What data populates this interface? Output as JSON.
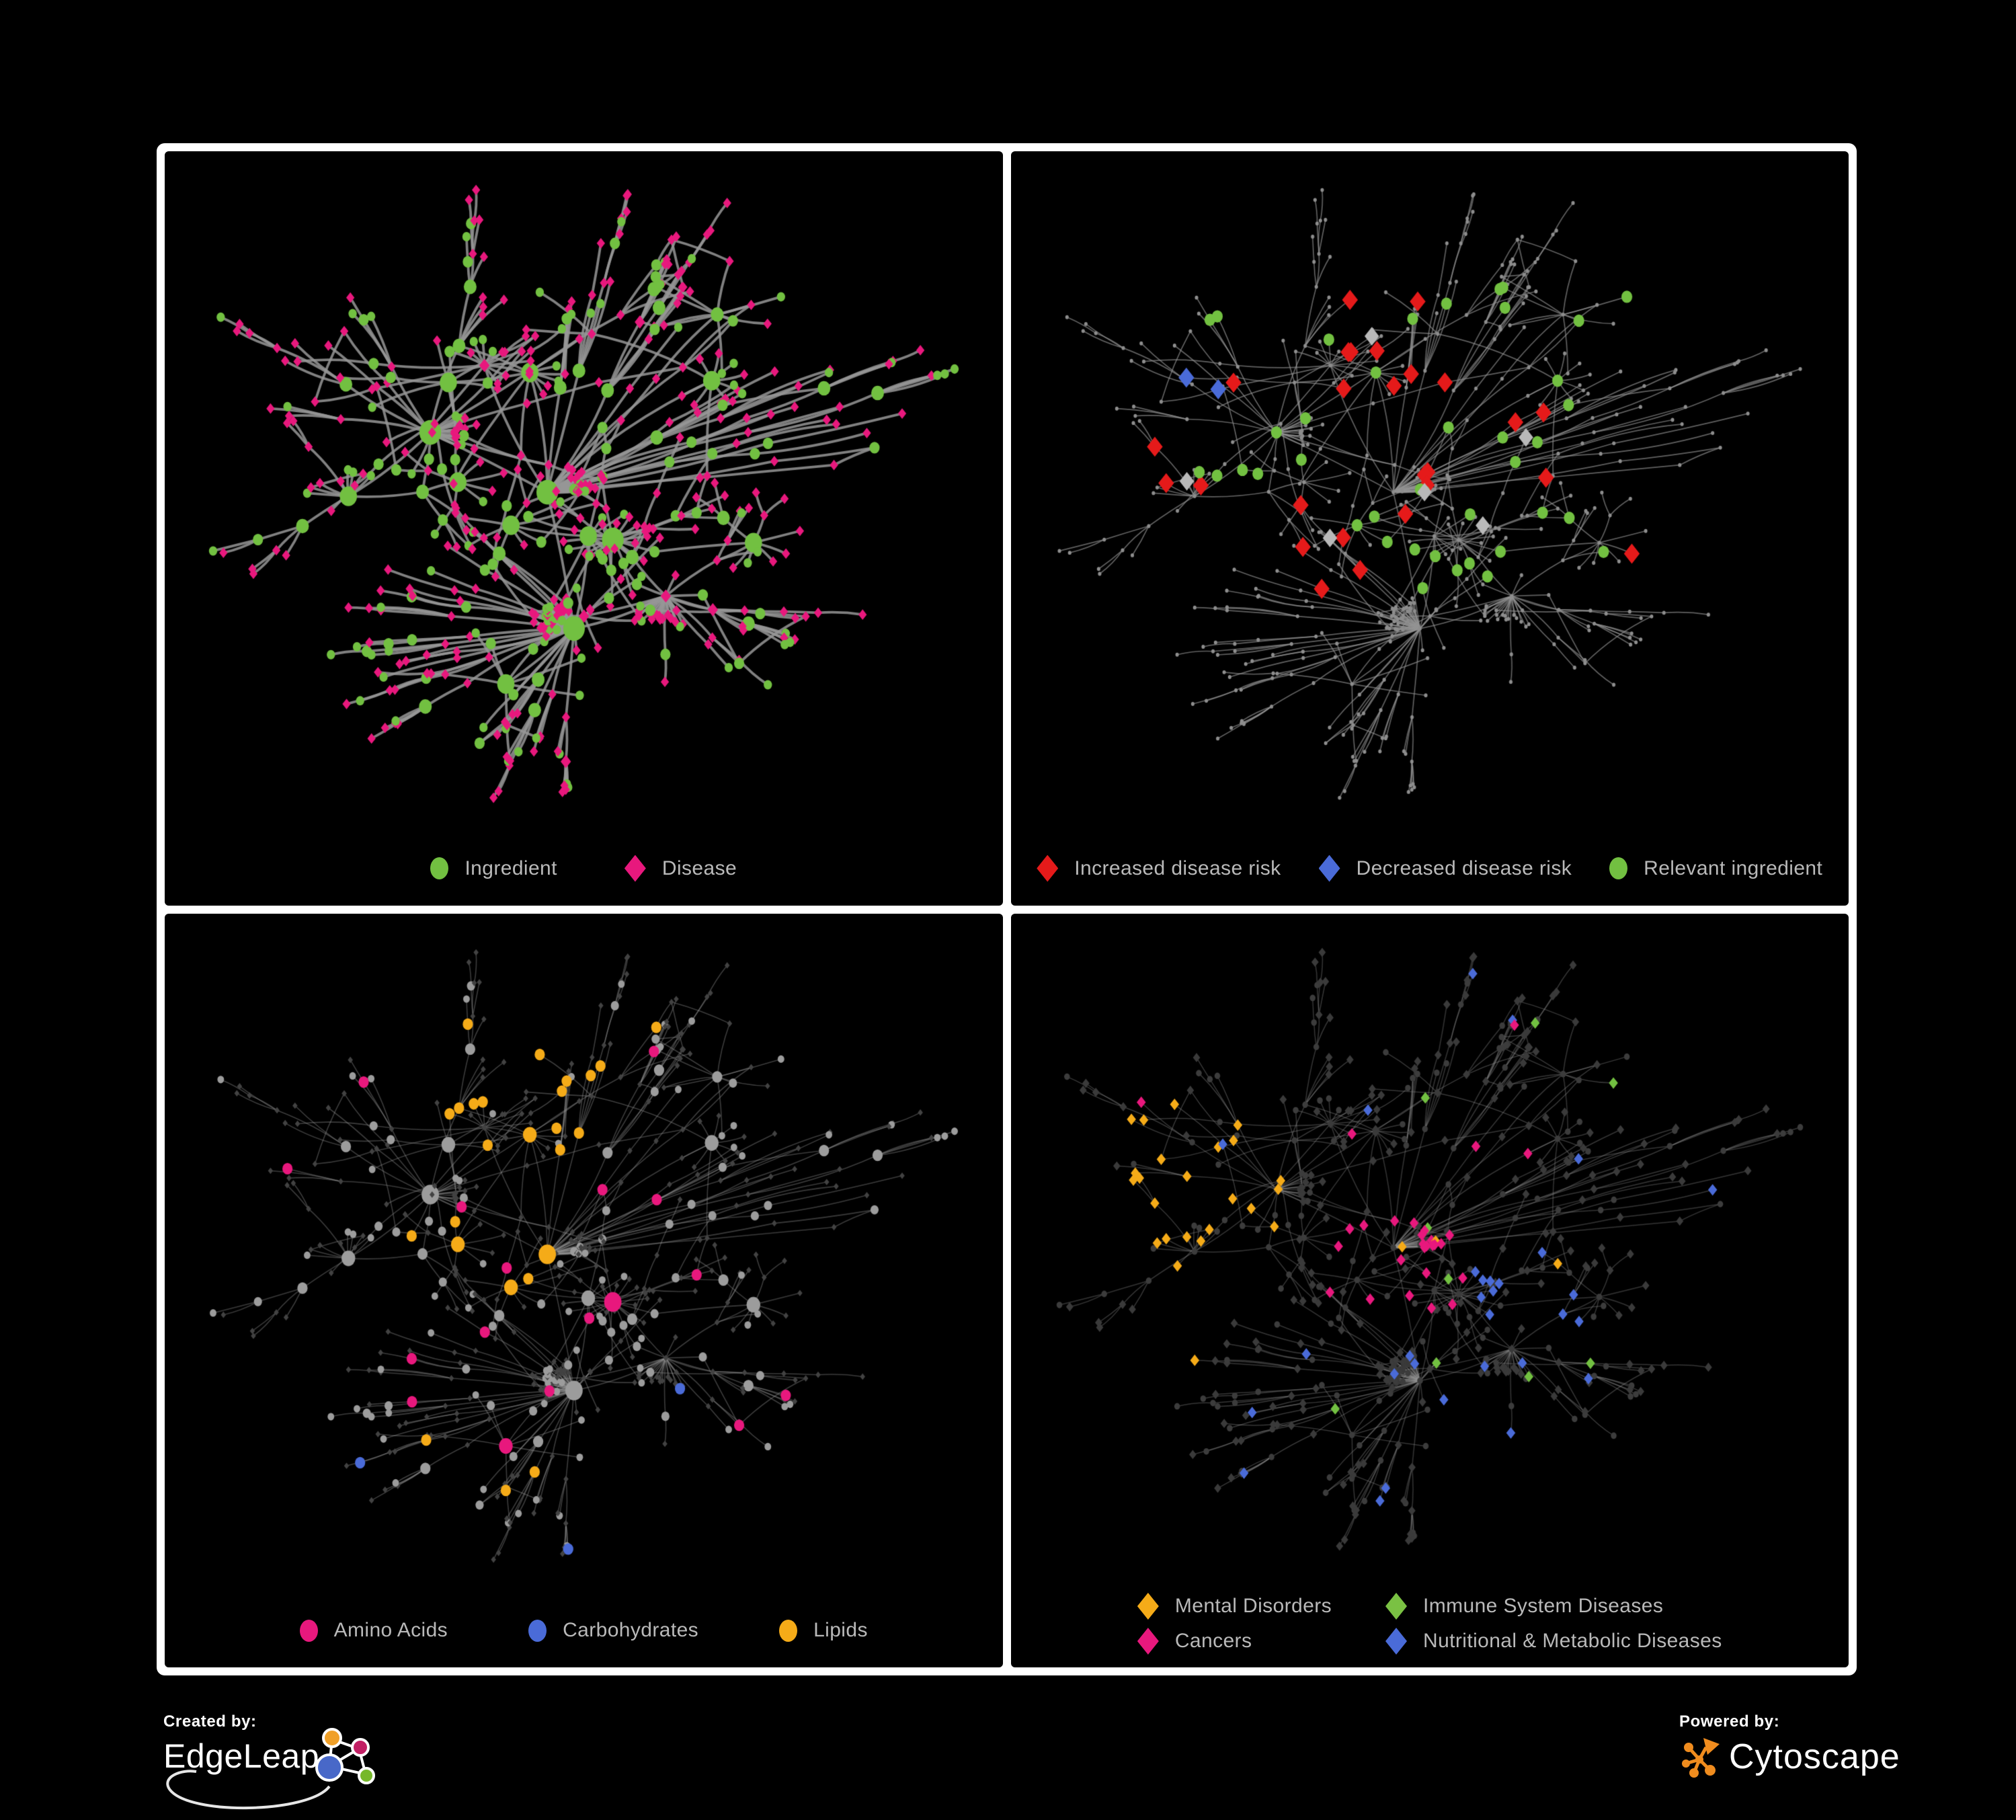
{
  "figure": {
    "background": "#000000",
    "frame_border_color": "#ffffff"
  },
  "panels": [
    {
      "name": "ingredient-disease-network",
      "legend": [
        {
          "shape": "circle",
          "color": "#72c041",
          "label": "Ingredient"
        },
        {
          "shape": "diamond",
          "color": "#e8187d",
          "label": "Disease"
        }
      ]
    },
    {
      "name": "disease-risk-network",
      "legend": [
        {
          "shape": "diamond",
          "color": "#e51a1a",
          "label": "Increased disease risk"
        },
        {
          "shape": "diamond",
          "color": "#4a6bd8",
          "label": "Decreased disease risk"
        },
        {
          "shape": "circle",
          "color": "#72c041",
          "label": "Relevant ingredient"
        }
      ]
    },
    {
      "name": "nutrient-class-network",
      "legend": [
        {
          "shape": "circle",
          "color": "#e8187d",
          "label": "Amino Acids"
        },
        {
          "shape": "circle",
          "color": "#4a6bd8",
          "label": "Carbohydrates"
        },
        {
          "shape": "circle",
          "color": "#f5ab18",
          "label": "Lipids"
        }
      ]
    },
    {
      "name": "disease-category-network",
      "legend": [
        {
          "shape": "diamond",
          "color": "#f5ab18",
          "label": "Mental Disorders"
        },
        {
          "shape": "diamond",
          "color": "#7ac143",
          "label": "Immune System Diseases"
        },
        {
          "shape": "diamond",
          "color": "#e8187d",
          "label": "Cancers"
        },
        {
          "shape": "diamond",
          "color": "#4a6bd8",
          "label": "Nutritional & Metabolic Diseases"
        }
      ]
    }
  ],
  "footer": {
    "created_by": {
      "label": "Created by:",
      "brand": "EdgeLeap"
    },
    "powered_by": {
      "label": "Powered by:",
      "brand": "Cytoscape"
    }
  },
  "network": {
    "seed": 1337,
    "node_count": 560,
    "extra_edge_count": 48,
    "colors": {
      "green": "#72c041",
      "pink": "#e8187d",
      "red": "#e51a1a",
      "blue": "#4a6bd8",
      "orange": "#f5ab18",
      "lightgray": "#b9b9b9",
      "dim_node": "#8d8d8d",
      "dark_diamond": "#3a3a3a",
      "dark_circle": "#3c3c3c",
      "mid_gray_node": "#9c9c9c"
    },
    "panel_styles": [
      {
        "edge_color": "rgba(150,150,150,0.85)",
        "edge_width": 3.8
      },
      {
        "edge_color": "rgba(148,148,148,0.65)",
        "edge_width": 1.7
      },
      {
        "edge_color": "rgba(150,150,150,0.40)",
        "edge_width": 1.6
      },
      {
        "edge_color": "rgba(150,150,150,0.36)",
        "edge_width": 1.5
      }
    ]
  }
}
